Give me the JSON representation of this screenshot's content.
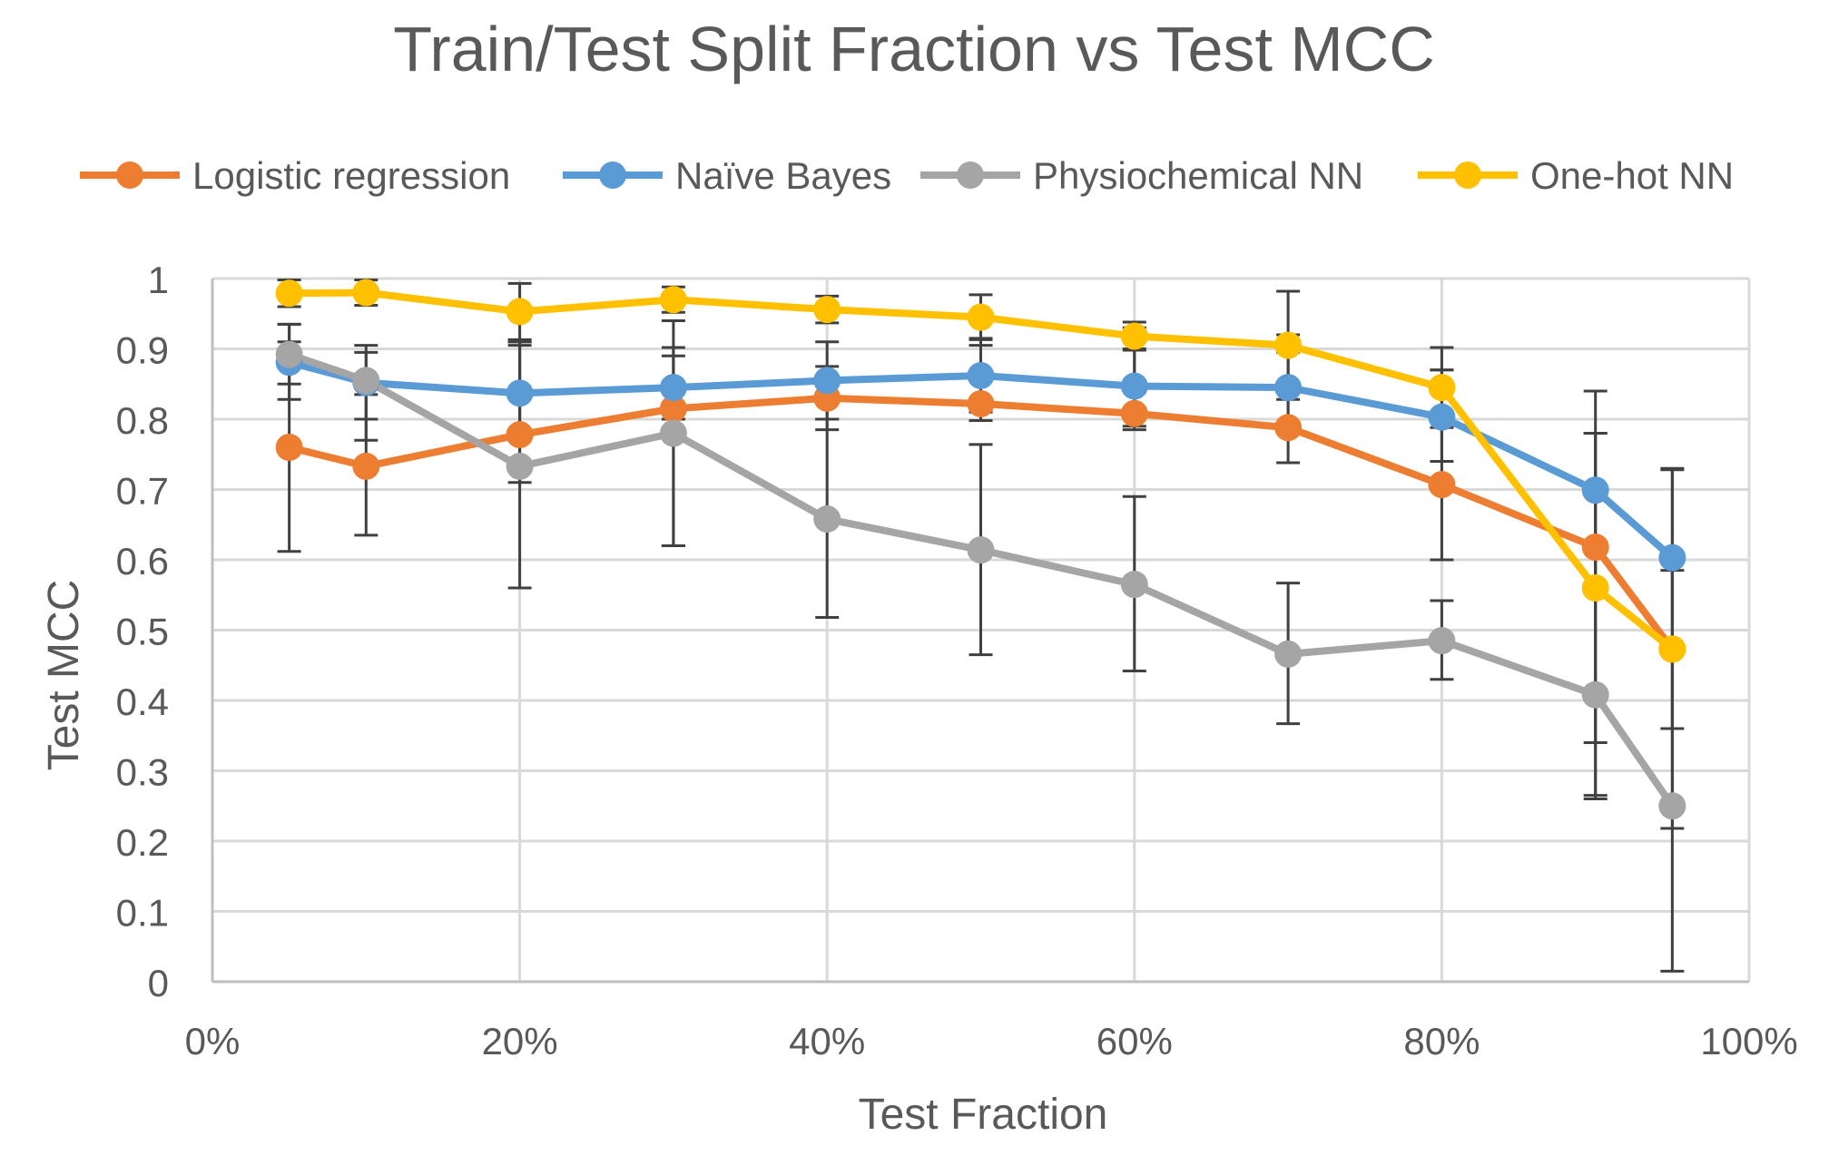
{
  "chart_data": {
    "type": "line",
    "title": "Train/Test Split Fraction vs Test MCC",
    "xlabel": "Test Fraction",
    "ylabel": "Test MCC",
    "xlim": [
      0,
      1
    ],
    "ylim": [
      0,
      1
    ],
    "x_ticks": [
      0,
      0.2,
      0.4,
      0.6,
      0.8,
      1.0
    ],
    "x_tick_labels": [
      "0%",
      "20%",
      "40%",
      "60%",
      "80%",
      "100%"
    ],
    "y_ticks": [
      0,
      0.1,
      0.2,
      0.3,
      0.4,
      0.5,
      0.6,
      0.7,
      0.8,
      0.9,
      1
    ],
    "y_tick_labels": [
      "0",
      "0.1",
      "0.2",
      "0.3",
      "0.4",
      "0.5",
      "0.6",
      "0.7",
      "0.8",
      "0.9",
      "1"
    ],
    "grid": true,
    "legend_position": "top",
    "x": [
      0.05,
      0.1,
      0.2,
      0.3,
      0.4,
      0.5,
      0.6,
      0.7,
      0.8,
      0.9,
      0.95
    ],
    "series": [
      {
        "name": "Logistic regression",
        "color": "#ED7D31",
        "values": [
          0.76,
          0.733,
          0.778,
          0.815,
          0.83,
          0.822,
          0.808,
          0.788,
          0.707,
          0.618,
          0.473
        ],
        "error_upper": [
          0.91,
          0.835,
          0.91,
          0.902,
          0.875,
          0.905,
          0.93,
          0.92,
          0.87,
          0.78,
          0.585
        ],
        "error_lower": [
          0.612,
          0.635,
          0.71,
          0.62,
          0.785,
          0.798,
          0.785,
          0.738,
          0.6,
          0.265,
          0.36
        ]
      },
      {
        "name": "Naïve Bayes",
        "color": "#5B9BD5",
        "values": [
          0.881,
          0.852,
          0.837,
          0.845,
          0.855,
          0.862,
          0.847,
          0.845,
          0.803,
          0.699,
          0.603
        ],
        "error_upper": [
          0.935,
          0.905,
          0.91,
          0.89,
          0.91,
          0.915,
          0.9,
          0.895,
          0.87,
          0.84,
          0.73
        ],
        "error_lower": [
          0.828,
          0.8,
          0.77,
          0.8,
          0.8,
          0.81,
          0.79,
          0.79,
          0.74,
          0.555,
          0.475
        ]
      },
      {
        "name": "Physiochemical NN",
        "color": "#A5A5A5",
        "values": [
          0.892,
          0.855,
          0.733,
          0.78,
          0.658,
          0.614,
          0.565,
          0.466,
          0.485,
          0.408,
          0.25
        ],
        "error_upper": [
          0.935,
          0.895,
          0.905,
          0.94,
          0.8,
          0.764,
          0.69,
          0.567,
          0.542,
          0.555,
          0.473
        ],
        "error_lower": [
          0.85,
          0.77,
          0.56,
          0.62,
          0.518,
          0.465,
          0.442,
          0.367,
          0.43,
          0.26,
          0.015
        ]
      },
      {
        "name": "One-hot NN",
        "color": "#FFC000",
        "values": [
          0.979,
          0.98,
          0.953,
          0.97,
          0.956,
          0.945,
          0.918,
          0.905,
          0.845,
          0.56,
          0.473
        ],
        "error_upper": [
          0.998,
          0.998,
          0.993,
          0.988,
          0.975,
          0.977,
          0.938,
          0.982,
          0.902,
          0.78,
          0.728
        ],
        "error_lower": [
          0.96,
          0.962,
          0.913,
          0.952,
          0.937,
          0.913,
          0.898,
          0.828,
          0.788,
          0.34,
          0.218
        ]
      }
    ]
  }
}
